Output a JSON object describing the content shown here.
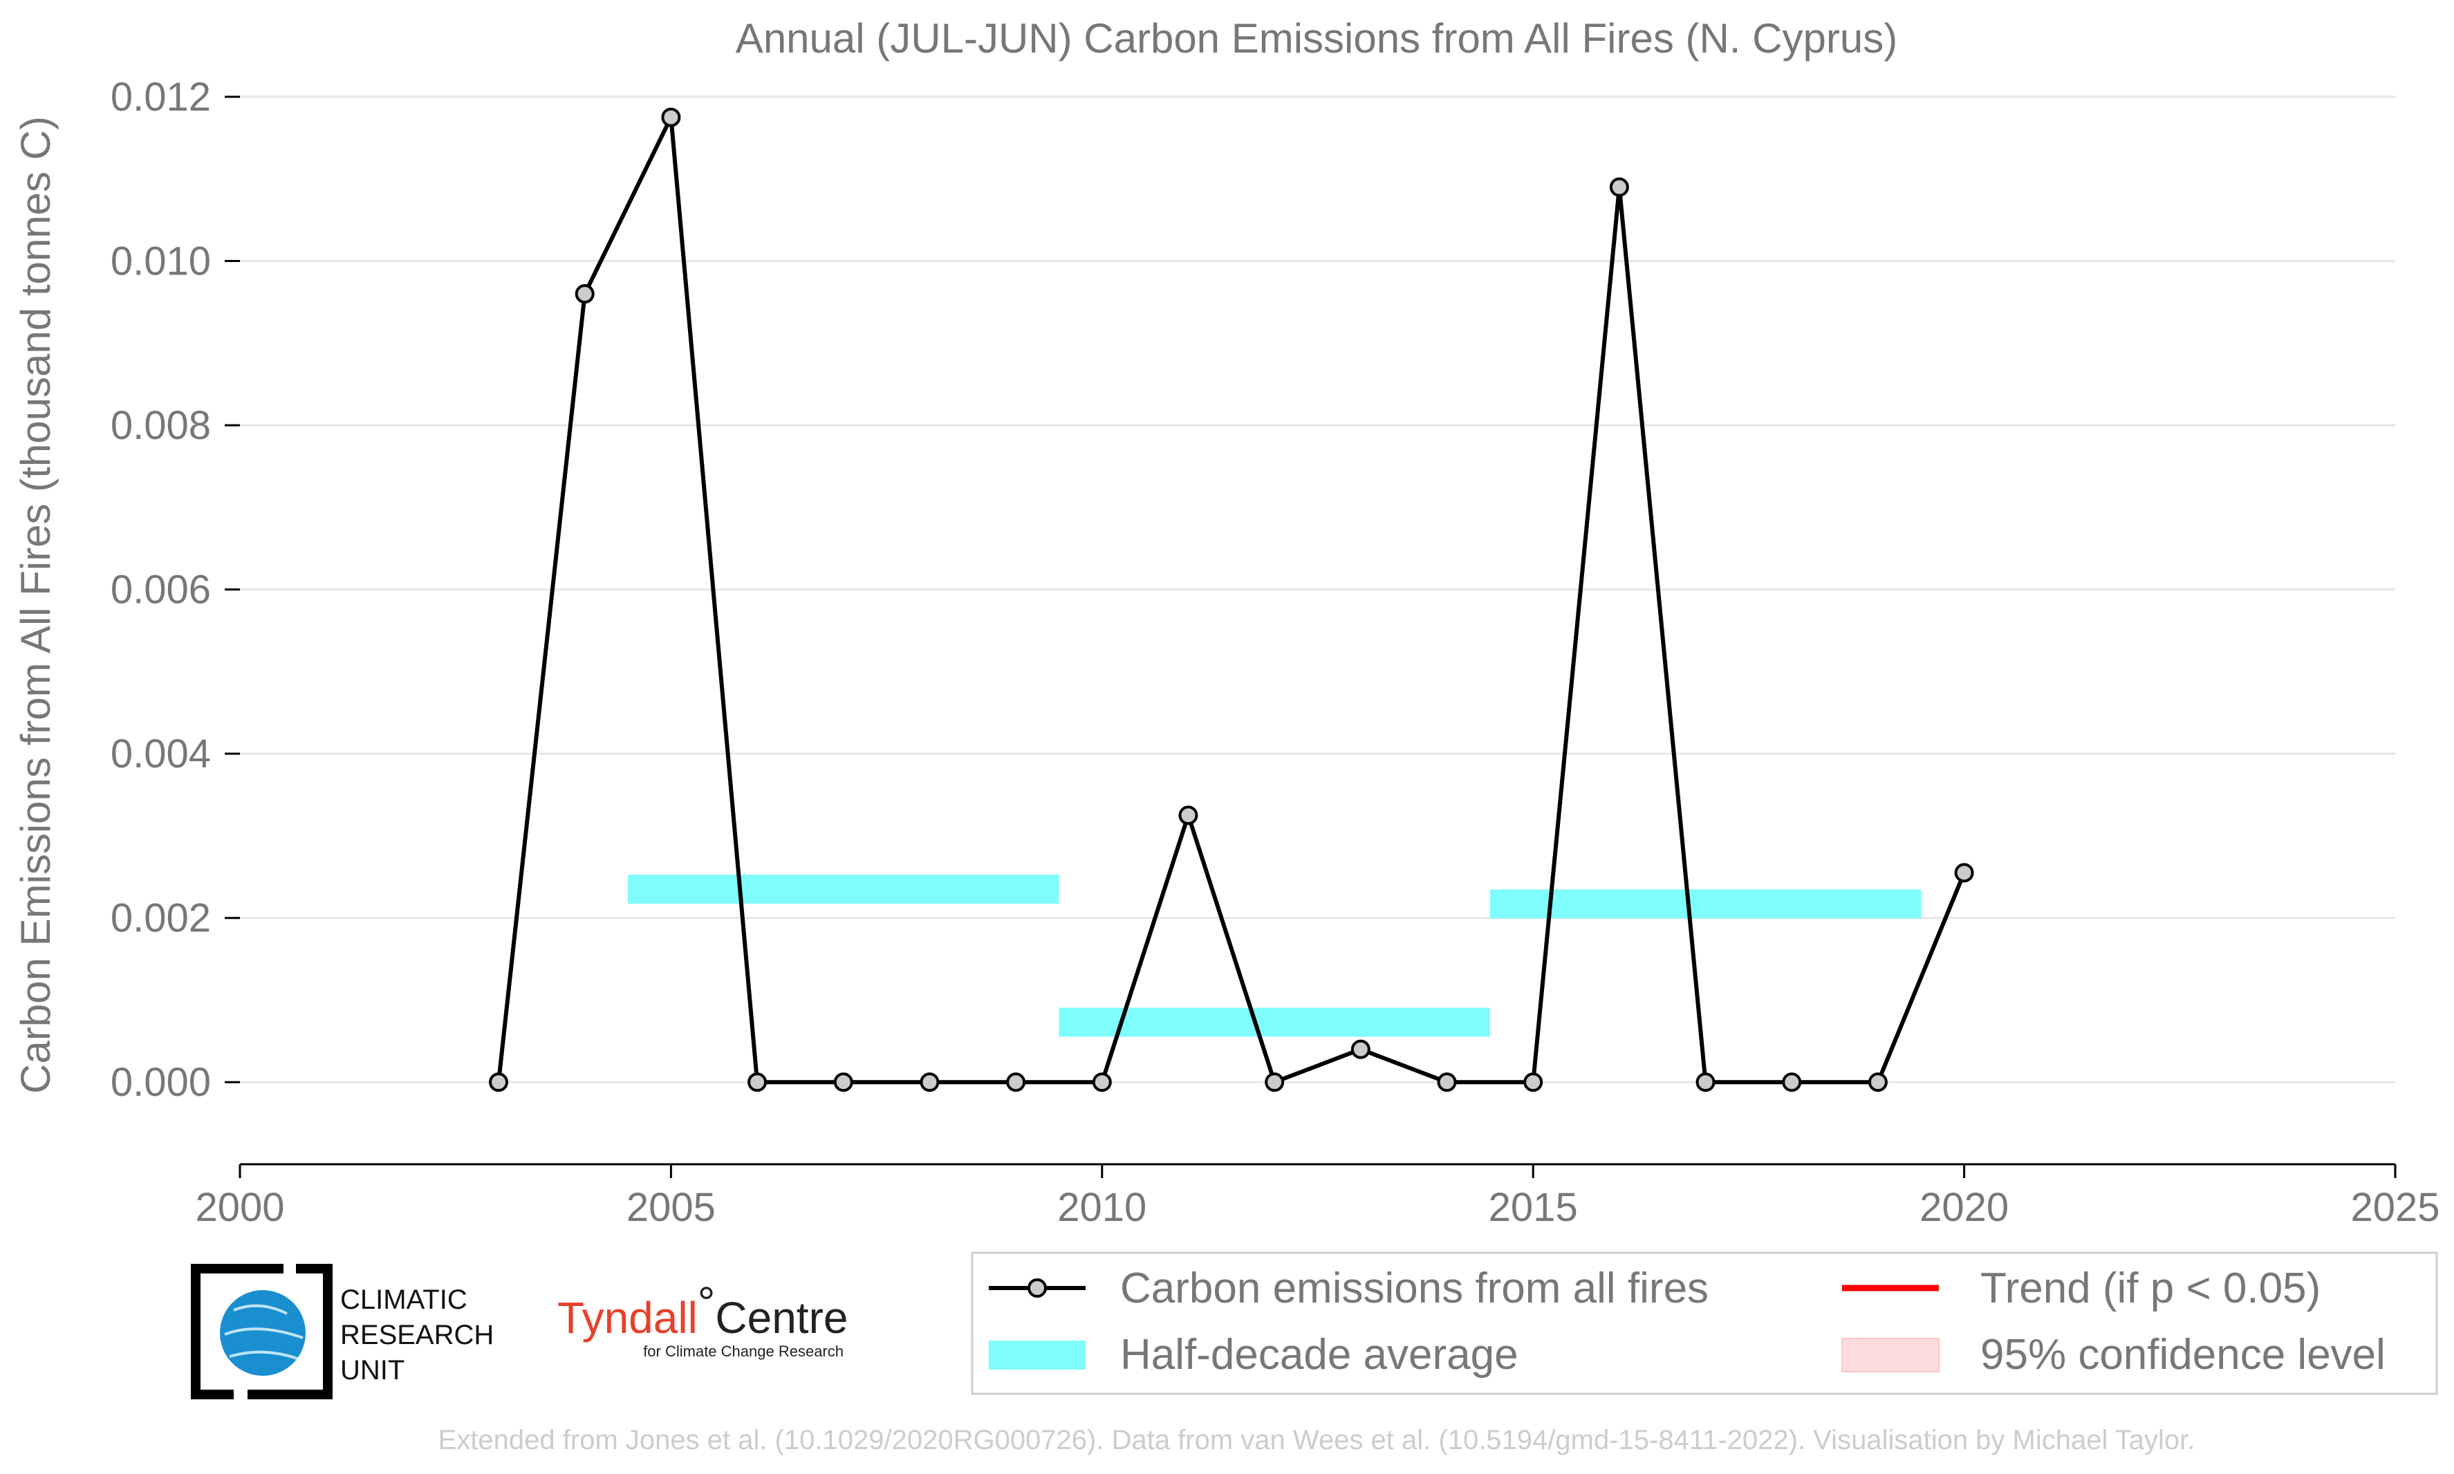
{
  "chart_data": {
    "type": "line",
    "title": "Annual (JUL-JUN) Carbon Emissions from All Fires (N. Cyprus)",
    "xlabel": "",
    "ylabel": "Carbon Emissions from All Fires (thousand tonnes C)",
    "xlim": [
      2000,
      2025
    ],
    "ylim": [
      -0.001,
      0.012
    ],
    "x_ticks": [
      "2000",
      "2005",
      "2010",
      "2015",
      "2020",
      "2025"
    ],
    "y_ticks": [
      "0.000",
      "0.002",
      "0.004",
      "0.006",
      "0.008",
      "0.010",
      "0.012"
    ],
    "grid": "horizontal",
    "series": [
      {
        "name": "Carbon emissions from all fires",
        "color": "#000000",
        "marker_fill": "#cccccc",
        "x": [
          2003,
          2004,
          2005,
          2006,
          2007,
          2008,
          2009,
          2010,
          2011,
          2012,
          2013,
          2014,
          2015,
          2016,
          2017,
          2018,
          2019,
          2020
        ],
        "y": [
          0.0,
          0.0096,
          0.01175,
          0.0,
          0.0,
          0.0,
          0.0,
          0.0,
          0.00325,
          0.0,
          0.0004,
          0.0,
          0.0,
          0.0109,
          0.0,
          0.0,
          0.0,
          0.00255
        ]
      }
    ],
    "half_decade_averages": {
      "name": "Half-decade average",
      "color": "#7ffcfc",
      "segments": [
        {
          "x_start": 2004.5,
          "x_end": 2009.5,
          "value": 0.00235
        },
        {
          "x_start": 2009.5,
          "x_end": 2014.5,
          "value": 0.00073
        },
        {
          "x_start": 2014.5,
          "x_end": 2019.5,
          "value": 0.00217
        }
      ]
    },
    "legend": {
      "placement": "bottom-right",
      "entries": [
        {
          "label": "Carbon emissions from all fires",
          "kind": "line-marker",
          "color": "#000000"
        },
        {
          "label": "Trend (if p < 0.05)",
          "kind": "line",
          "color": "#ff0000"
        },
        {
          "label": "Half-decade average",
          "kind": "band",
          "color": "#7ffcfc"
        },
        {
          "label": "95% confidence level",
          "kind": "patch",
          "color": "#ffdcdc"
        }
      ]
    }
  },
  "logos": {
    "cru_lines": [
      "CLIMATIC",
      "RESEARCH",
      "UNIT"
    ],
    "tyndall_name": "Tyndall",
    "tyndall_degree": "°",
    "tyndall_centre": "Centre",
    "tyndall_sub": "for Climate Change Research"
  },
  "footer": "Extended from Jones et al. (10.1029/2020RG000726). Data from van Wees et al. (10.5194/gmd-15-8411-2022). Visualisation by Michael Taylor."
}
